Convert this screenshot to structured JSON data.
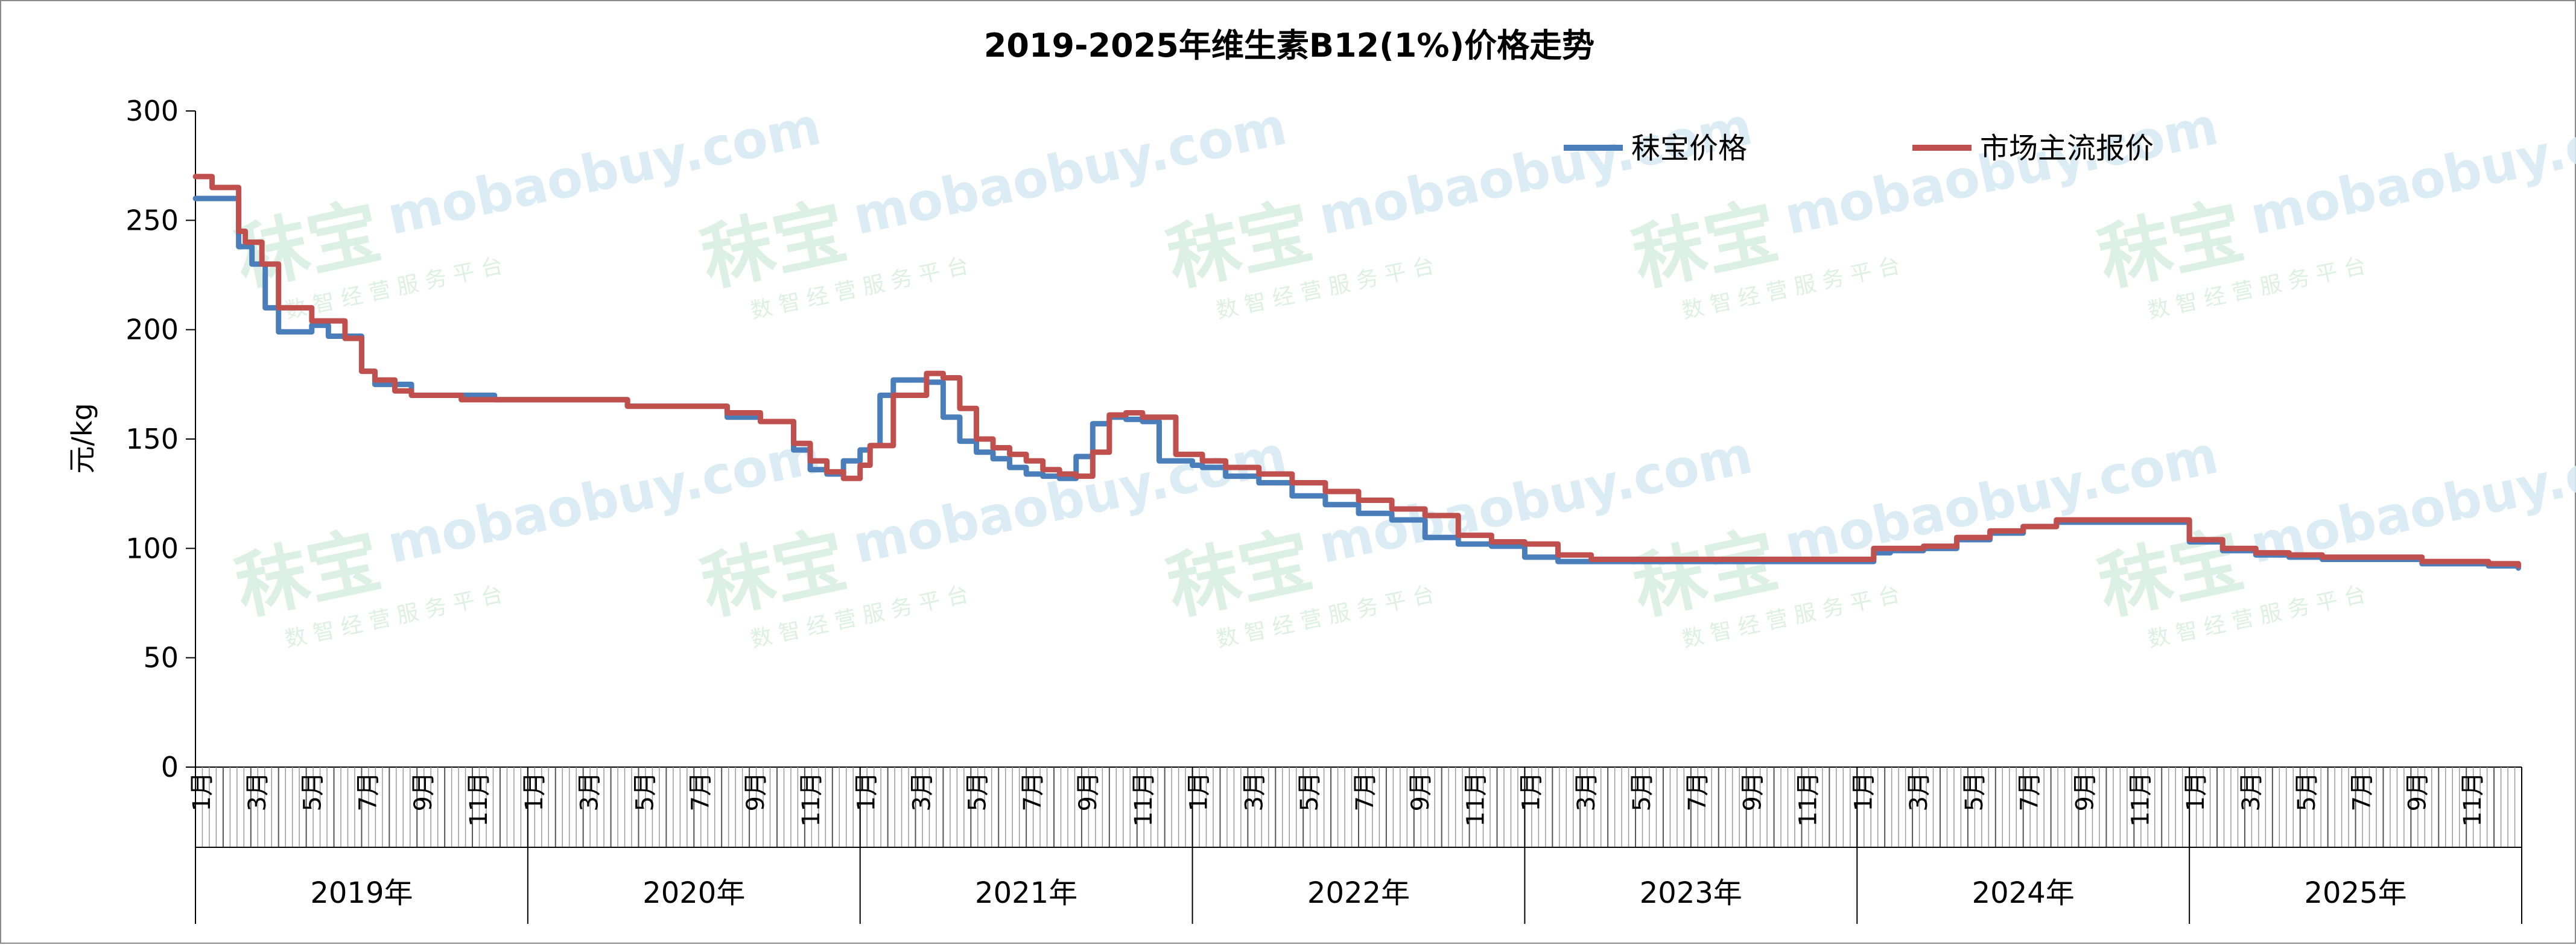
{
  "chart_data": {
    "type": "line",
    "title": "2019-2025年维生素B12(1%)价格走势",
    "ylabel": "元/kg",
    "ylim": [
      0,
      300
    ],
    "yticks": [
      0,
      50,
      100,
      150,
      200,
      250,
      300
    ],
    "years": [
      "2019年",
      "2020年",
      "2021年",
      "2022年",
      "2023年",
      "2024年",
      "2025年"
    ],
    "month_tick_labels": [
      "1月",
      "3月",
      "5月",
      "7月",
      "9月",
      "11月"
    ],
    "legend_position": "top-right",
    "grid": false,
    "watermark": {
      "brand": "秣宝",
      "site": "mobaobuy.com",
      "tagline": "数 智 经 营 服 务 平 台"
    },
    "series": [
      {
        "name": "秣宝价格",
        "color": "#4a7ebb",
        "x": [
          2019.0,
          2019.08,
          2019.13,
          2019.17,
          2019.21,
          2019.25,
          2019.3,
          2019.35,
          2019.4,
          2019.45,
          2019.5,
          2019.54,
          2019.6,
          2019.65,
          2019.7,
          2019.75,
          2019.8,
          2019.85,
          2019.9,
          2020.0,
          2020.1,
          2020.3,
          2020.5,
          2020.6,
          2020.7,
          2020.8,
          2020.85,
          2020.9,
          2020.95,
          2021.0,
          2021.03,
          2021.06,
          2021.1,
          2021.2,
          2021.25,
          2021.3,
          2021.35,
          2021.4,
          2021.45,
          2021.5,
          2021.55,
          2021.6,
          2021.65,
          2021.7,
          2021.75,
          2021.8,
          2021.85,
          2021.9,
          2021.95,
          2022.0,
          2022.03,
          2022.1,
          2022.2,
          2022.3,
          2022.4,
          2022.5,
          2022.6,
          2022.7,
          2022.8,
          2022.9,
          2023.0,
          2023.1,
          2023.2,
          2023.3,
          2023.4,
          2023.5,
          2023.6,
          2023.7,
          2023.8,
          2023.9,
          2024.0,
          2024.05,
          2024.1,
          2024.2,
          2024.3,
          2024.4,
          2024.5,
          2024.6,
          2024.7,
          2024.8,
          2024.93,
          2024.97,
          2025.0,
          2025.1,
          2025.15,
          2025.2,
          2025.3,
          2025.4,
          2025.5,
          2025.6,
          2025.7,
          2025.8,
          2025.9,
          2025.99
        ],
        "y": [
          260,
          260,
          238,
          230,
          210,
          199,
          199,
          202,
          197,
          197,
          181,
          175,
          175,
          170,
          170,
          170,
          170,
          170,
          168,
          168,
          168,
          165,
          165,
          160,
          158,
          145,
          136,
          134,
          140,
          145,
          147,
          170,
          177,
          176,
          160,
          149,
          144,
          141,
          137,
          134,
          133,
          132,
          142,
          157,
          160,
          159,
          158,
          140,
          140,
          138,
          137,
          133,
          130,
          124,
          120,
          116,
          113,
          105,
          102,
          101,
          96,
          94,
          94,
          94,
          94,
          94,
          94,
          94,
          94,
          94,
          94,
          98,
          99,
          100,
          104,
          107,
          110,
          112,
          112,
          112,
          112,
          112,
          103,
          99,
          99,
          97,
          96,
          95,
          95,
          95,
          93,
          93,
          92,
          91
        ]
      },
      {
        "name": "市场主流报价",
        "color": "#c0504d",
        "x": [
          2019.0,
          2019.03,
          2019.05,
          2019.13,
          2019.15,
          2019.2,
          2019.25,
          2019.35,
          2019.45,
          2019.5,
          2019.54,
          2019.6,
          2019.65,
          2019.7,
          2019.8,
          2019.9,
          2020.0,
          2020.1,
          2020.3,
          2020.5,
          2020.6,
          2020.7,
          2020.8,
          2020.85,
          2020.9,
          2020.95,
          2021.0,
          2021.03,
          2021.06,
          2021.1,
          2021.2,
          2021.25,
          2021.3,
          2021.35,
          2021.4,
          2021.45,
          2021.5,
          2021.55,
          2021.6,
          2021.65,
          2021.7,
          2021.75,
          2021.8,
          2021.85,
          2021.9,
          2021.95,
          2022.0,
          2022.03,
          2022.1,
          2022.2,
          2022.3,
          2022.4,
          2022.5,
          2022.6,
          2022.7,
          2022.8,
          2022.9,
          2023.0,
          2023.1,
          2023.2,
          2023.3,
          2023.4,
          2023.5,
          2023.6,
          2023.7,
          2023.8,
          2023.9,
          2024.0,
          2024.05,
          2024.1,
          2024.2,
          2024.3,
          2024.4,
          2024.5,
          2024.6,
          2024.7,
          2024.8,
          2024.93,
          2024.97,
          2025.0,
          2025.1,
          2025.15,
          2025.2,
          2025.3,
          2025.4,
          2025.5,
          2025.6,
          2025.7,
          2025.8,
          2025.9,
          2025.99
        ],
        "y": [
          270,
          270,
          265,
          245,
          240,
          230,
          210,
          204,
          196,
          181,
          177,
          172,
          170,
          170,
          168,
          168,
          168,
          168,
          165,
          165,
          162,
          158,
          148,
          140,
          135,
          132,
          138,
          147,
          147,
          170,
          180,
          178,
          164,
          150,
          146,
          143,
          140,
          136,
          134,
          133,
          144,
          161,
          162,
          160,
          160,
          143,
          143,
          140,
          137,
          134,
          130,
          126,
          122,
          118,
          115,
          106,
          103,
          102,
          97,
          95,
          95,
          95,
          95,
          95,
          95,
          95,
          95,
          95,
          100,
          100,
          101,
          105,
          108,
          110,
          113,
          113,
          113,
          113,
          113,
          104,
          100,
          100,
          98,
          97,
          96,
          96,
          96,
          94,
          94,
          93,
          92
        ]
      }
    ]
  }
}
